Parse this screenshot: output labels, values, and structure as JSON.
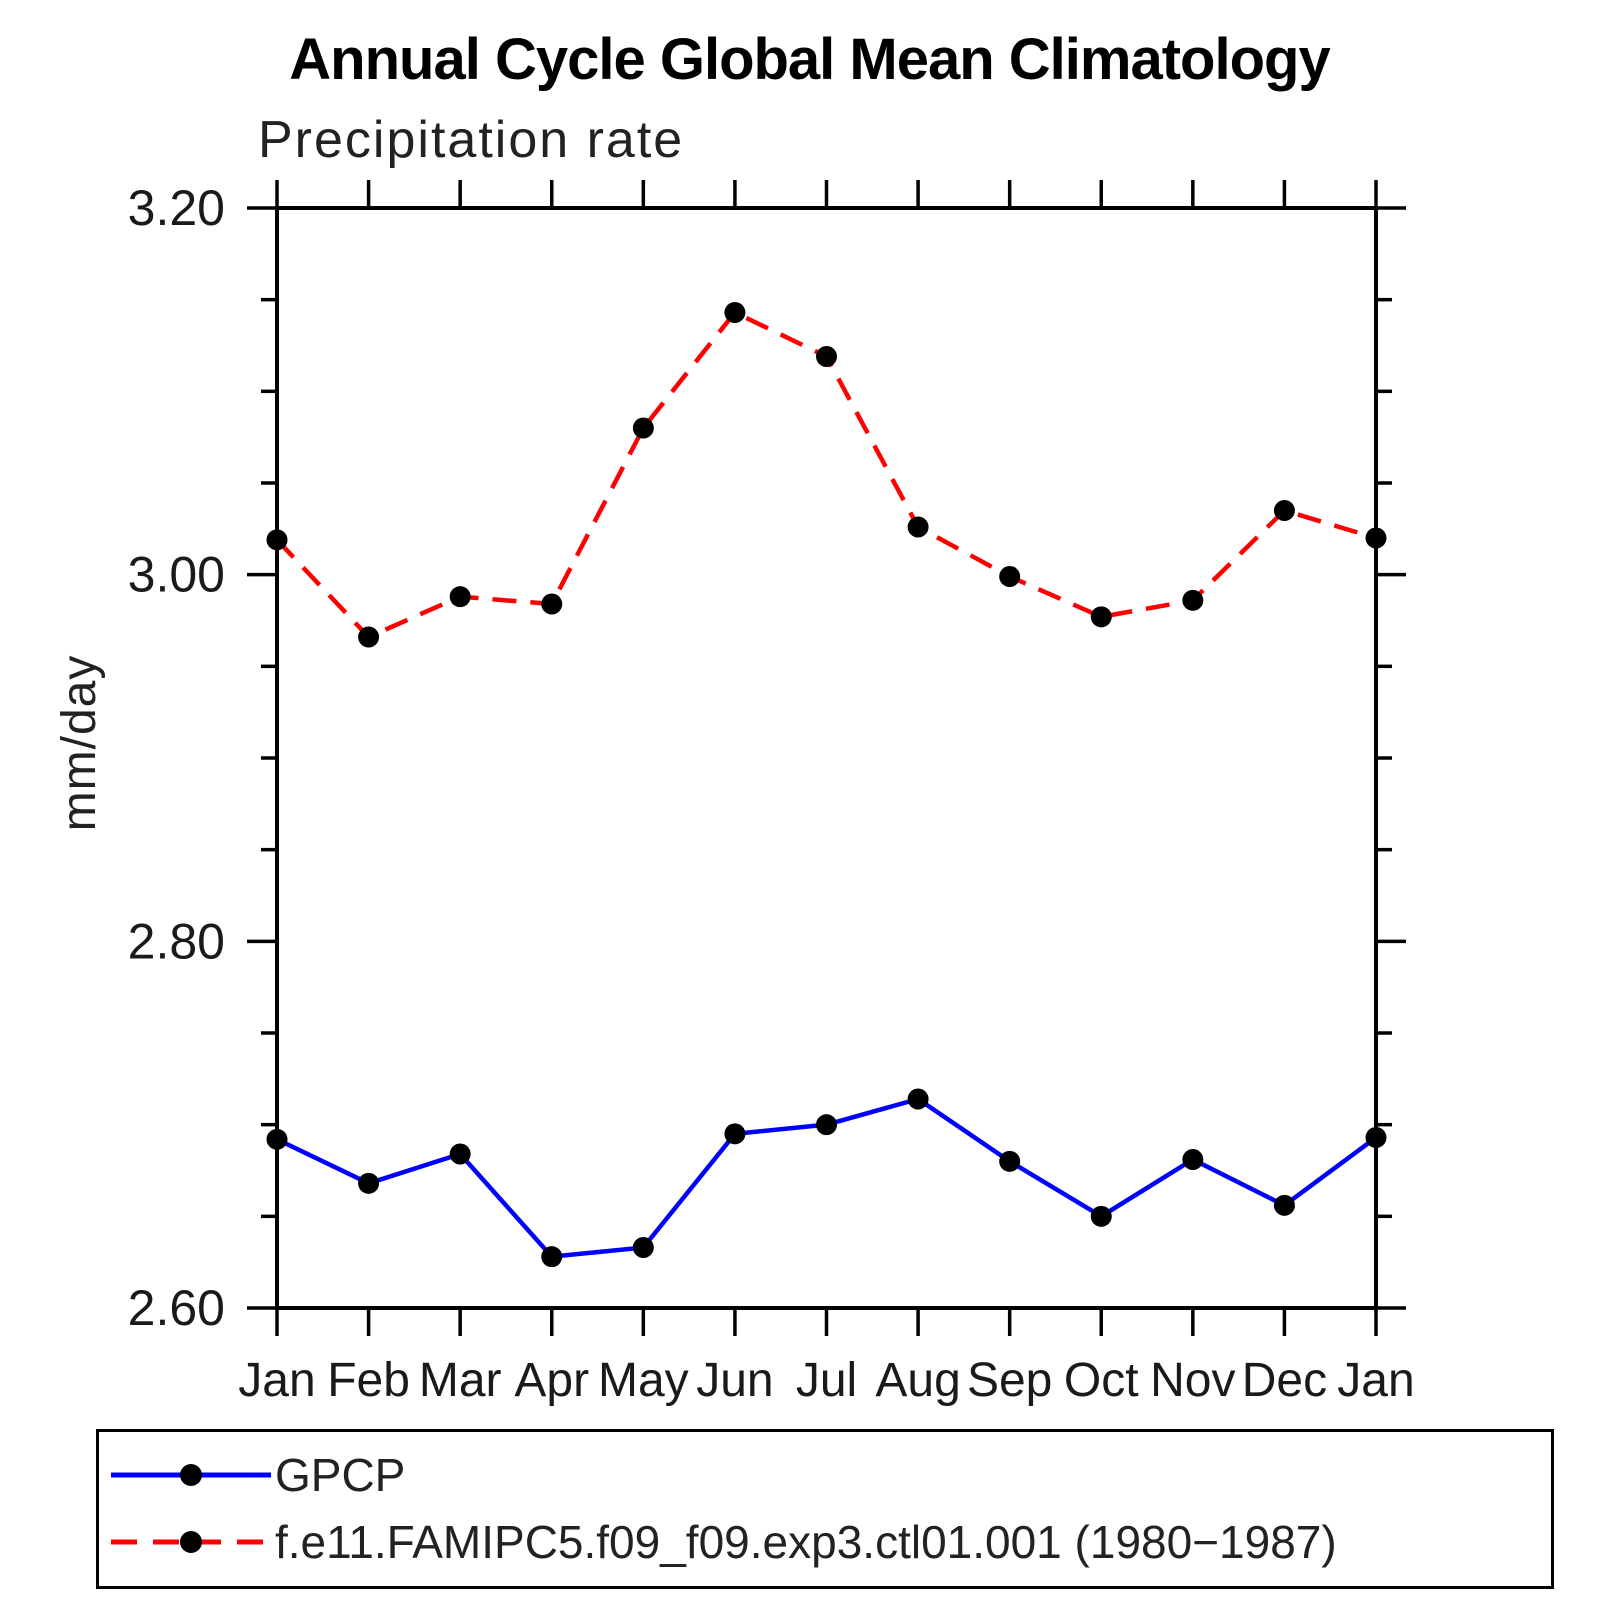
{
  "header": {
    "title": "Annual Cycle Global Mean Climatology",
    "subtitle": "Precipitation rate"
  },
  "axes": {
    "ylabel": "mm/day"
  },
  "legend": {
    "items": [
      {
        "label": "GPCP"
      },
      {
        "label": "f.e11.FAMIPC5.f09_f09.exp3.ctl01.001 (1980−1987)"
      }
    ]
  },
  "chart_data": {
    "type": "line",
    "title": "Annual Cycle Global Mean Climatology",
    "subtitle": "Precipitation rate",
    "xlabel": "",
    "ylabel": "mm/day",
    "categories": [
      "Jan",
      "Feb",
      "Mar",
      "Apr",
      "May",
      "Jun",
      "Jul",
      "Aug",
      "Sep",
      "Oct",
      "Nov",
      "Dec",
      "Jan"
    ],
    "ylim": [
      2.6,
      3.2
    ],
    "ytick_values": [
      2.6,
      2.8,
      3.0,
      3.2
    ],
    "ytick_labels": [
      "2.60",
      "2.80",
      "3.00",
      "3.20"
    ],
    "minor_tick_step": 0.05,
    "grid": false,
    "legend_position": "bottom-box",
    "marker_color": "#000000",
    "series": [
      {
        "name": "GPCP",
        "color": "#0000ff",
        "style": "solid",
        "marker": "circle",
        "values": [
          2.692,
          2.668,
          2.684,
          2.628,
          2.633,
          2.695,
          2.7,
          2.714,
          2.68,
          2.65,
          2.681,
          2.656,
          2.693
        ]
      },
      {
        "name": "f.e11.FAMIPC5.f09_f09.exp3.ctl01.001 (1980−1987)",
        "color": "#ff0000",
        "style": "dashed",
        "marker": "circle",
        "values": [
          3.019,
          2.966,
          2.988,
          2.984,
          3.08,
          3.143,
          3.119,
          3.026,
          2.999,
          2.977,
          2.986,
          3.035,
          3.02
        ]
      }
    ]
  }
}
